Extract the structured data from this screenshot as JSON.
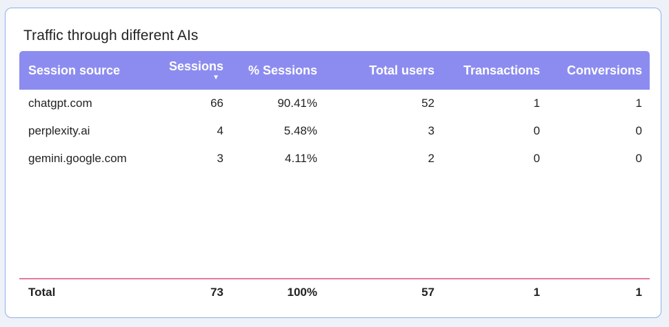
{
  "card": {
    "title": "Traffic through different AIs"
  },
  "table": {
    "columns": {
      "source": "Session source",
      "sessions": "Sessions",
      "sort_indicator": "▼",
      "pct_sessions": "% Sessions",
      "total_users": "Total users",
      "transactions": "Transactions",
      "conversions": "Conversions"
    },
    "rows": [
      {
        "source": "chatgpt.com",
        "sessions": "66",
        "pct_sessions": "90.41%",
        "total_users": "52",
        "transactions": "1",
        "conversions": "1"
      },
      {
        "source": "perplexity.ai",
        "sessions": "4",
        "pct_sessions": "5.48%",
        "total_users": "3",
        "transactions": "0",
        "conversions": "0"
      },
      {
        "source": "gemini.google.com",
        "sessions": "3",
        "pct_sessions": "4.11%",
        "total_users": "2",
        "transactions": "0",
        "conversions": "0"
      }
    ],
    "total": {
      "label": "Total",
      "sessions": "73",
      "pct_sessions": "100%",
      "total_users": "57",
      "transactions": "1",
      "conversions": "1"
    }
  },
  "colors": {
    "header_bg": "#8c8cf0",
    "card_border": "#8fb0ea",
    "total_divider": "#e47a9a"
  }
}
